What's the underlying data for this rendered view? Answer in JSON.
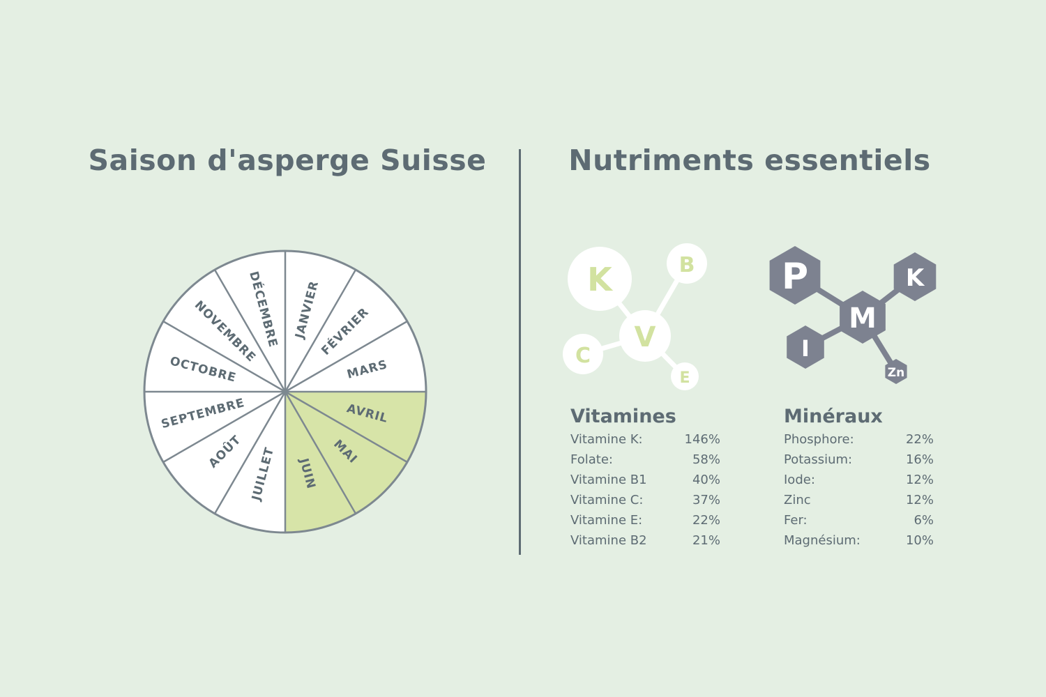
{
  "season": {
    "title": "Saison d'asperge Suisse",
    "months": [
      "JANVIER",
      "FÉVRIER",
      "MARS",
      "AVRIL",
      "MAI",
      "JUIN",
      "JUILLET",
      "AOÛT",
      "SEPTEMBRE",
      "OCTOBRE",
      "NOVEMBRE",
      "DÉCEMBRE"
    ],
    "in_season": [
      "AVRIL",
      "MAI",
      "JUIN"
    ],
    "highlight_color": "#d7e4a8",
    "wheel_color": "#ffffff",
    "line_color": "#7d8890"
  },
  "nutrients": {
    "title": "Nutriments essentiels",
    "vitamin_icon": {
      "letters": [
        "K",
        "B",
        "V",
        "C",
        "E"
      ],
      "color": "#ffffff",
      "text_color": "#d2e2a0"
    },
    "mineral_icon": {
      "letters": [
        "P",
        "M",
        "K",
        "I",
        "Zn"
      ],
      "color": "#7d8290",
      "text_color": "#ffffff"
    },
    "vitamins": {
      "heading": "Vitamines",
      "rows": [
        {
          "name": "Vitamine K:",
          "value": "146%"
        },
        {
          "name": "Folate:",
          "value": "58%"
        },
        {
          "name": "Vitamine B1",
          "value": "40%"
        },
        {
          "name": "Vitamine C:",
          "value": "37%"
        },
        {
          "name": "Vitamine E:",
          "value": "22%"
        },
        {
          "name": "Vitamine B2",
          "value": "21%"
        }
      ]
    },
    "minerals": {
      "heading": "Minéraux",
      "rows": [
        {
          "name": "Phosphore:",
          "value": "22%"
        },
        {
          "name": "Potassium:",
          "value": "16%"
        },
        {
          "name": "Iode:",
          "value": "12%"
        },
        {
          "name": "Zinc",
          "value": "12%"
        },
        {
          "name": "Fer:",
          "value": "6%"
        },
        {
          "name": "Magnésium:",
          "value": "10%"
        }
      ]
    }
  }
}
